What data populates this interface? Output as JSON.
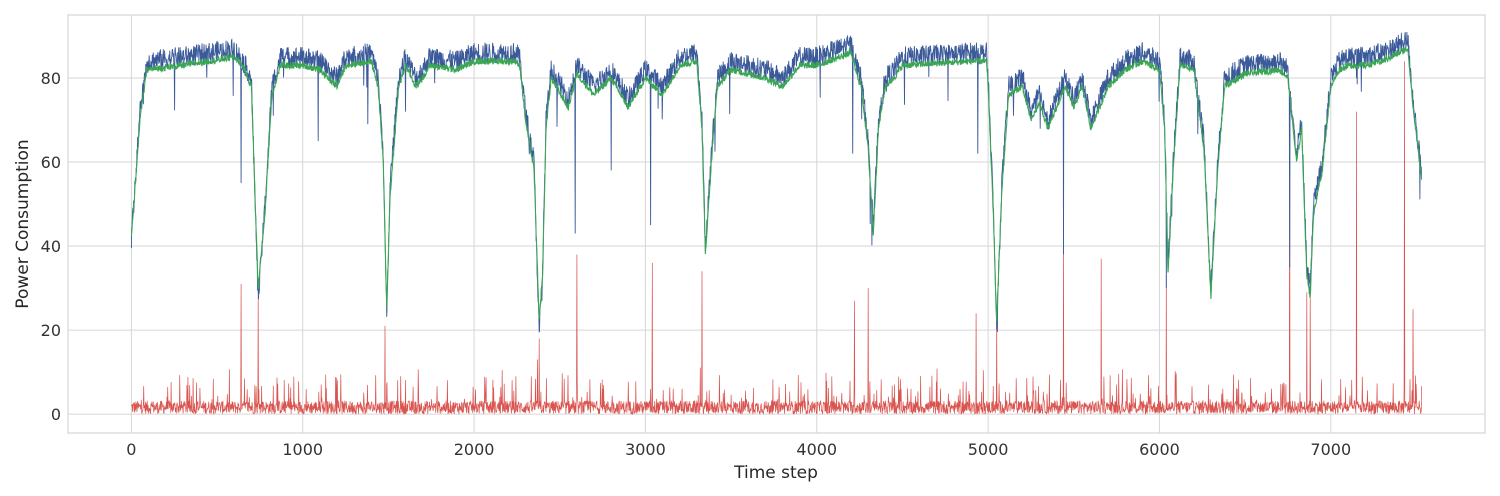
{
  "chart_data": {
    "type": "line",
    "title": "",
    "xlabel": "Time step",
    "ylabel": "Power Consumption",
    "xlim": [
      -370,
      7900
    ],
    "ylim": [
      -4.5,
      95
    ],
    "x_ticks": [
      0,
      1000,
      2000,
      3000,
      4000,
      5000,
      6000,
      7000
    ],
    "x_tick_labels": [
      "0",
      "1000",
      "2000",
      "3000",
      "4000",
      "5000",
      "6000",
      "7000"
    ],
    "y_ticks": [
      0,
      20,
      40,
      60,
      80
    ],
    "y_tick_labels": [
      "0",
      "20",
      "40",
      "60",
      "80"
    ],
    "grid": true,
    "legend": "none",
    "colors": {
      "actual": "#3a5a9a",
      "predicted": "#3aa655",
      "error": "#d9534f"
    },
    "n_points": 7531,
    "series": [
      {
        "key": "actual",
        "points": [
          [
            0,
            42
          ],
          [
            50,
            72
          ],
          [
            90,
            84
          ],
          [
            300,
            85
          ],
          [
            600,
            87
          ],
          [
            650,
            84
          ],
          [
            700,
            80
          ],
          [
            740,
            27
          ],
          [
            780,
            50
          ],
          [
            820,
            78
          ],
          [
            870,
            85
          ],
          [
            1000,
            85
          ],
          [
            1100,
            84
          ],
          [
            1200,
            80
          ],
          [
            1250,
            85
          ],
          [
            1400,
            86
          ],
          [
            1440,
            80
          ],
          [
            1470,
            62
          ],
          [
            1490,
            22
          ],
          [
            1510,
            55
          ],
          [
            1560,
            80
          ],
          [
            1600,
            85
          ],
          [
            1660,
            80
          ],
          [
            1700,
            82
          ],
          [
            1740,
            85
          ],
          [
            1900,
            84
          ],
          [
            2000,
            86
          ],
          [
            2100,
            86
          ],
          [
            2250,
            86
          ],
          [
            2270,
            84
          ],
          [
            2300,
            72
          ],
          [
            2350,
            60
          ],
          [
            2380,
            19
          ],
          [
            2400,
            35
          ],
          [
            2420,
            70
          ],
          [
            2450,
            82
          ],
          [
            2550,
            75
          ],
          [
            2600,
            83
          ],
          [
            2700,
            78
          ],
          [
            2800,
            82
          ],
          [
            2900,
            75
          ],
          [
            3000,
            82
          ],
          [
            3100,
            78
          ],
          [
            3200,
            85
          ],
          [
            3300,
            86
          ],
          [
            3330,
            70
          ],
          [
            3350,
            40
          ],
          [
            3390,
            65
          ],
          [
            3420,
            80
          ],
          [
            3500,
            84
          ],
          [
            3700,
            82
          ],
          [
            3800,
            80
          ],
          [
            3900,
            85
          ],
          [
            4000,
            85
          ],
          [
            4200,
            88
          ],
          [
            4240,
            82
          ],
          [
            4260,
            80
          ],
          [
            4300,
            65
          ],
          [
            4330,
            45
          ],
          [
            4360,
            70
          ],
          [
            4400,
            80
          ],
          [
            4450,
            82
          ],
          [
            4500,
            85
          ],
          [
            4900,
            86
          ],
          [
            4990,
            86
          ],
          [
            5000,
            80
          ],
          [
            5030,
            50
          ],
          [
            5050,
            20
          ],
          [
            5080,
            55
          ],
          [
            5120,
            78
          ],
          [
            5200,
            80
          ],
          [
            5250,
            72
          ],
          [
            5300,
            76
          ],
          [
            5350,
            70
          ],
          [
            5400,
            75
          ],
          [
            5450,
            80
          ],
          [
            5500,
            75
          ],
          [
            5550,
            80
          ],
          [
            5600,
            70
          ],
          [
            5650,
            75
          ],
          [
            5700,
            80
          ],
          [
            5800,
            84
          ],
          [
            5900,
            86
          ],
          [
            6000,
            84
          ],
          [
            6030,
            70
          ],
          [
            6050,
            35
          ],
          [
            6080,
            60
          ],
          [
            6120,
            85
          ],
          [
            6200,
            84
          ],
          [
            6260,
            65
          ],
          [
            6300,
            30
          ],
          [
            6340,
            60
          ],
          [
            6380,
            80
          ],
          [
            6500,
            83
          ],
          [
            6700,
            84
          ],
          [
            6750,
            82
          ],
          [
            6800,
            62
          ],
          [
            6830,
            70
          ],
          [
            6860,
            35
          ],
          [
            6880,
            30
          ],
          [
            6900,
            50
          ],
          [
            6950,
            60
          ],
          [
            7000,
            80
          ],
          [
            7050,
            84
          ],
          [
            7100,
            85
          ],
          [
            7200,
            85
          ],
          [
            7300,
            86
          ],
          [
            7350,
            87
          ],
          [
            7450,
            89
          ],
          [
            7480,
            75
          ],
          [
            7530,
            57
          ]
        ]
      },
      {
        "key": "predicted",
        "points": [
          [
            0,
            42
          ],
          [
            50,
            70
          ],
          [
            90,
            82
          ],
          [
            300,
            83
          ],
          [
            600,
            85
          ],
          [
            650,
            83
          ],
          [
            700,
            78
          ],
          [
            740,
            30
          ],
          [
            780,
            48
          ],
          [
            820,
            76
          ],
          [
            870,
            83
          ],
          [
            1000,
            83
          ],
          [
            1100,
            82
          ],
          [
            1200,
            78
          ],
          [
            1250,
            83
          ],
          [
            1400,
            84
          ],
          [
            1440,
            78
          ],
          [
            1470,
            60
          ],
          [
            1490,
            25
          ],
          [
            1510,
            52
          ],
          [
            1560,
            78
          ],
          [
            1600,
            83
          ],
          [
            1660,
            78
          ],
          [
            1700,
            80
          ],
          [
            1740,
            83
          ],
          [
            1900,
            82
          ],
          [
            2000,
            84
          ],
          [
            2100,
            84
          ],
          [
            2250,
            84
          ],
          [
            2270,
            82
          ],
          [
            2300,
            70
          ],
          [
            2350,
            58
          ],
          [
            2380,
            22
          ],
          [
            2400,
            33
          ],
          [
            2420,
            68
          ],
          [
            2450,
            80
          ],
          [
            2550,
            73
          ],
          [
            2600,
            81
          ],
          [
            2700,
            76
          ],
          [
            2800,
            80
          ],
          [
            2900,
            73
          ],
          [
            3000,
            80
          ],
          [
            3100,
            76
          ],
          [
            3200,
            83
          ],
          [
            3300,
            84
          ],
          [
            3330,
            68
          ],
          [
            3350,
            38
          ],
          [
            3390,
            63
          ],
          [
            3420,
            78
          ],
          [
            3500,
            82
          ],
          [
            3700,
            80
          ],
          [
            3800,
            78
          ],
          [
            3900,
            83
          ],
          [
            4000,
            83
          ],
          [
            4200,
            86
          ],
          [
            4240,
            80
          ],
          [
            4260,
            78
          ],
          [
            4300,
            63
          ],
          [
            4330,
            43
          ],
          [
            4360,
            68
          ],
          [
            4400,
            78
          ],
          [
            4450,
            80
          ],
          [
            4500,
            83
          ],
          [
            4900,
            84
          ],
          [
            4990,
            84
          ],
          [
            5000,
            78
          ],
          [
            5030,
            48
          ],
          [
            5050,
            22
          ],
          [
            5080,
            53
          ],
          [
            5120,
            76
          ],
          [
            5200,
            78
          ],
          [
            5250,
            70
          ],
          [
            5300,
            74
          ],
          [
            5350,
            68
          ],
          [
            5400,
            73
          ],
          [
            5450,
            78
          ],
          [
            5500,
            73
          ],
          [
            5550,
            78
          ],
          [
            5600,
            68
          ],
          [
            5650,
            73
          ],
          [
            5700,
            78
          ],
          [
            5800,
            82
          ],
          [
            5900,
            84
          ],
          [
            6000,
            82
          ],
          [
            6030,
            68
          ],
          [
            6050,
            33
          ],
          [
            6080,
            58
          ],
          [
            6120,
            83
          ],
          [
            6200,
            82
          ],
          [
            6260,
            63
          ],
          [
            6300,
            28
          ],
          [
            6340,
            58
          ],
          [
            6380,
            78
          ],
          [
            6500,
            81
          ],
          [
            6700,
            82
          ],
          [
            6750,
            80
          ],
          [
            6800,
            60
          ],
          [
            6830,
            68
          ],
          [
            6860,
            33
          ],
          [
            6880,
            28
          ],
          [
            6900,
            48
          ],
          [
            6950,
            58
          ],
          [
            7000,
            78
          ],
          [
            7050,
            82
          ],
          [
            7100,
            83
          ],
          [
            7200,
            83
          ],
          [
            7300,
            84
          ],
          [
            7350,
            85
          ],
          [
            7450,
            87
          ],
          [
            7480,
            73
          ],
          [
            7530,
            56
          ]
        ]
      },
      {
        "key": "error",
        "points": [
          [
            0,
            2
          ],
          [
            7530,
            2
          ]
        ]
      }
    ]
  }
}
